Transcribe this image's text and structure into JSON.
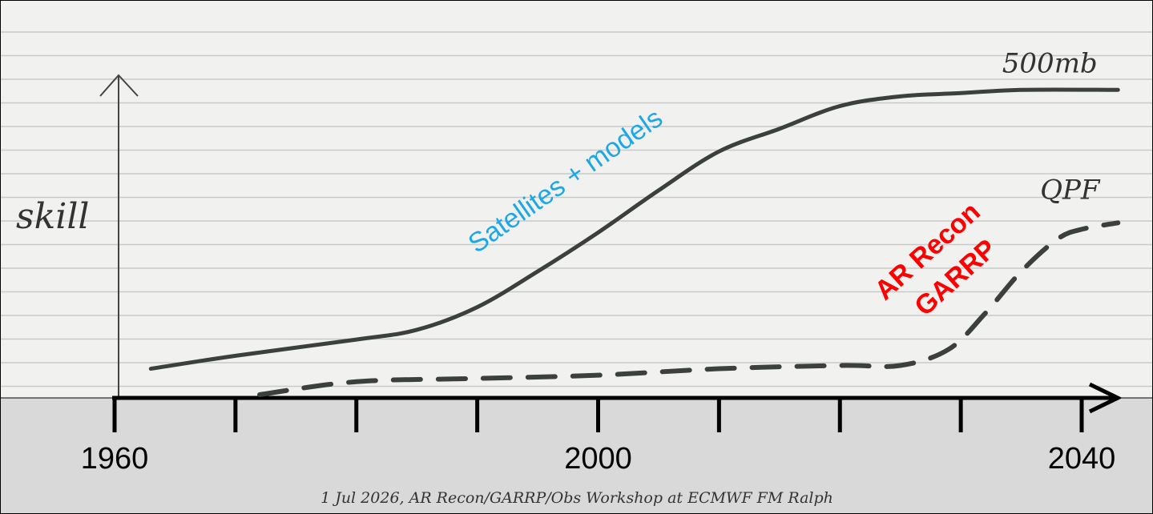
{
  "chart_data": {
    "type": "line",
    "y_label": "skill",
    "xlim": [
      1960,
      2040
    ],
    "ylim": [
      0,
      100
    ],
    "xticks": [
      1960,
      2000,
      2040
    ],
    "xticks_minor": [
      1970,
      1980,
      1990,
      2010,
      2020,
      2030
    ],
    "series": [
      {
        "name": "500mb",
        "color": "#3b403d",
        "dashed": false,
        "x": [
          1963,
          1970,
          1980,
          1985,
          1990,
          1995,
          2000,
          2005,
          2010,
          2015,
          2020,
          2025,
          2030,
          2035,
          2043
        ],
        "values": [
          9,
          13,
          18,
          21,
          28,
          39,
          51,
          64,
          76,
          83,
          90,
          93,
          94,
          95,
          95
        ]
      },
      {
        "name": "QPF",
        "color": "#3b403d",
        "dashed": true,
        "x": [
          1972,
          1980,
          1990,
          2000,
          2010,
          2020,
          2025,
          2029,
          2032,
          2035,
          2038,
          2040,
          2043
        ],
        "values": [
          1,
          5,
          6,
          7,
          9,
          10,
          10,
          15,
          26,
          39,
          49,
          52,
          54
        ]
      }
    ],
    "annotations": [
      {
        "text": "Satellites + models",
        "color": "#1ea7e6"
      },
      {
        "text": "AR Recon",
        "color": "#ff0000"
      },
      {
        "text": "GARRP",
        "color": "#ff0000"
      }
    ],
    "footer": "1 Jul 2026, AR Recon/GARRP/Obs Workshop at ECMWF FM Ralph"
  }
}
